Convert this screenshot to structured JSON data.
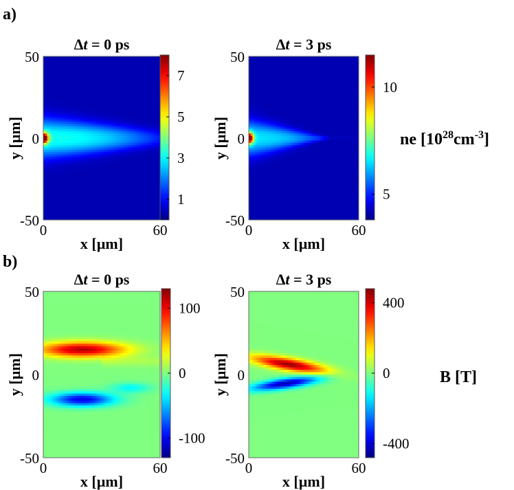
{
  "chart_data": [
    {
      "type": "heatmap",
      "panel": "a)",
      "title": "Δt = 0 ps",
      "title_parts": [
        "Δ",
        "t",
        " = 0 ps"
      ],
      "xlabel": "x [µm]",
      "ylabel": "y [µm]",
      "xlim": [
        0,
        60
      ],
      "ylim": [
        -50,
        50
      ],
      "xticks": [
        "0",
        "60"
      ],
      "yticks": [
        "50",
        "0",
        "-50"
      ],
      "colorbar": {
        "label": "ne [10²⁸cm⁻³]",
        "ticks": [
          1,
          3,
          5,
          7
        ],
        "range": [
          0,
          8
        ]
      },
      "description_field": "density",
      "peak": 8,
      "jet_length": 56
    },
    {
      "type": "heatmap",
      "panel": "",
      "title": "Δt = 3 ps",
      "title_parts": [
        "Δ",
        "t",
        " = 3 ps"
      ],
      "xlabel": "x [µm]",
      "ylabel": "y [µm]",
      "xlim": [
        0,
        60
      ],
      "ylim": [
        -50,
        50
      ],
      "xticks": [
        "0",
        "60"
      ],
      "yticks": [
        "50",
        "0",
        "-50"
      ],
      "colorbar": {
        "label": "ne [10²⁸cm⁻³]",
        "ticks": [
          5,
          10
        ],
        "range": [
          3.8,
          11.5
        ]
      },
      "description_field": "density",
      "peak": 11.5,
      "jet_length": 40
    },
    {
      "type": "heatmap",
      "panel": "b)",
      "title": "Δt = 0 ps",
      "title_parts": [
        "Δ",
        "t",
        " = 0 ps"
      ],
      "xlabel": "x [µm]",
      "ylabel": "y [µm]",
      "xlim": [
        0,
        60
      ],
      "ylim": [
        -50,
        50
      ],
      "xticks": [
        "0",
        "60"
      ],
      "yticks": [
        "50",
        "0",
        "-50"
      ],
      "colorbar": {
        "label": "B [T]",
        "ticks": [
          100,
          0,
          -100
        ],
        "range": [
          -130,
          130
        ]
      },
      "description_field": "field",
      "peak": 130
    },
    {
      "type": "heatmap",
      "panel": "",
      "title": "Δt = 3 ps",
      "title_parts": [
        "Δ",
        "t",
        " = 3 ps"
      ],
      "xlabel": "x [µm]",
      "ylabel": "y [µm]",
      "xlim": [
        0,
        60
      ],
      "ylim": [
        -50,
        50
      ],
      "xticks": [
        "0",
        "60"
      ],
      "yticks": [
        "50",
        "0",
        "-50"
      ],
      "colorbar": {
        "label": "B [T]",
        "ticks": [
          400,
          0,
          -400
        ],
        "range": [
          -480,
          480
        ]
      },
      "description_field": "field",
      "peak": 480
    }
  ],
  "labels": {
    "ne_base": "ne [10",
    "ne_sup1": "28",
    "ne_mid": "cm",
    "ne_sup2": "-3",
    "ne_end": "]",
    "b_label": "B [T]"
  }
}
